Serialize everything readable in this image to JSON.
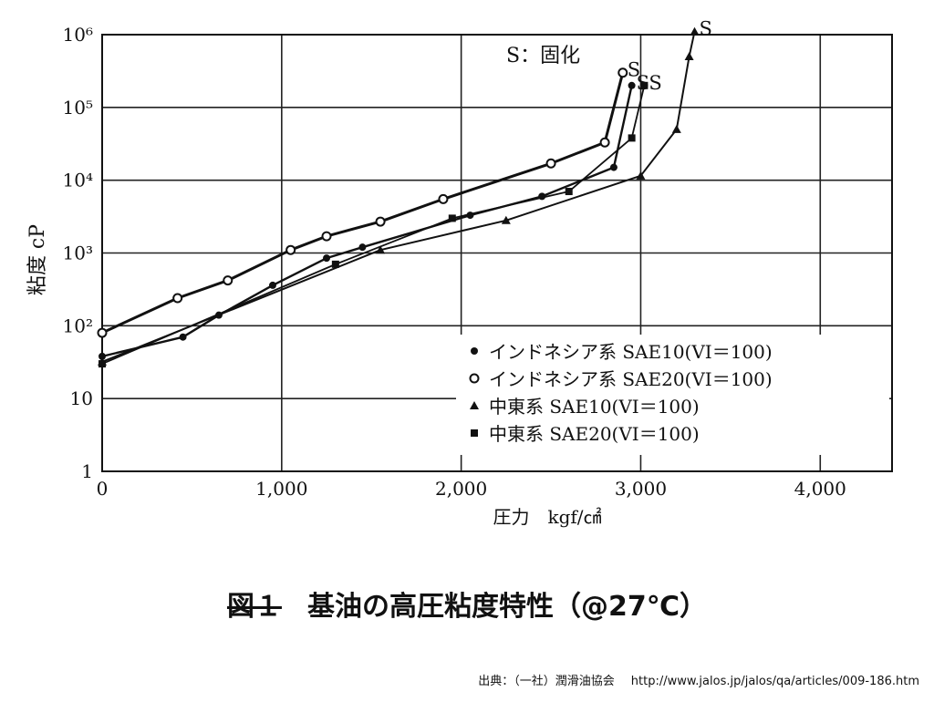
{
  "chart_data": {
    "type": "line",
    "yscale": "log",
    "ylabel": "粘度 cP",
    "xlabel": "圧力　kgf/㎠",
    "xlim": [
      0,
      4400
    ],
    "ylim": [
      1,
      1000000
    ],
    "xticks": [
      {
        "value": 0,
        "label": "0"
      },
      {
        "value": 1000,
        "label": "1,000"
      },
      {
        "value": 2000,
        "label": "2,000"
      },
      {
        "value": 3000,
        "label": "3,000"
      },
      {
        "value": 4000,
        "label": "4,000"
      }
    ],
    "yticks": [
      {
        "value": 1,
        "label": "1"
      },
      {
        "value": 10,
        "label": "10"
      },
      {
        "value": 100,
        "label": "10²"
      },
      {
        "value": 1000,
        "label": "10³"
      },
      {
        "value": 10000,
        "label": "10⁴"
      },
      {
        "value": 100000,
        "label": "10⁵"
      },
      {
        "value": 1000000,
        "label": "10⁶"
      }
    ],
    "grid": true,
    "annotation": "S：固化",
    "solidification_label": "S",
    "legend_position": "bottom-right",
    "series": [
      {
        "name": "インドネシア系 SAE10(VI＝100)",
        "marker": "dot",
        "x": [
          0,
          450,
          650,
          950,
          1250,
          1450,
          2050,
          2450,
          2850,
          2950
        ],
        "y": [
          38,
          70,
          140,
          360,
          850,
          1200,
          3300,
          6000,
          15000,
          200000
        ],
        "s_at": [
          2950,
          200000
        ]
      },
      {
        "name": "インドネシア系 SAE20(VI＝100)",
        "marker": "circle",
        "x": [
          0,
          420,
          700,
          1050,
          1250,
          1550,
          1900,
          2500,
          2800,
          2900
        ],
        "y": [
          80,
          240,
          420,
          1100,
          1700,
          2700,
          5500,
          17000,
          33000,
          300000
        ],
        "s_at": [
          2900,
          300000
        ]
      },
      {
        "name": "中東系 SAE10(VI＝100)",
        "marker": "triangle",
        "x": [
          0,
          1550,
          2250,
          3000,
          3200,
          3270,
          3300
        ],
        "y": [
          32,
          1100,
          2800,
          11500,
          50000,
          500000,
          1100000
        ],
        "s_at": [
          3300,
          1100000
        ]
      },
      {
        "name": "中東系 SAE20(VI＝100)",
        "marker": "square",
        "x": [
          0,
          1300,
          1950,
          2600,
          2950,
          3020
        ],
        "y": [
          30,
          700,
          3000,
          7000,
          38000,
          200000
        ],
        "s_at": [
          3020,
          200000
        ]
      }
    ]
  },
  "caption": {
    "fig_label": "図１",
    "title": "基油の高圧粘度特性（@27℃）"
  },
  "source": {
    "label": "出典：（一社）潤滑油協会",
    "url": "http://www.jalos.jp/jalos/qa/articles/009-186.htm"
  }
}
